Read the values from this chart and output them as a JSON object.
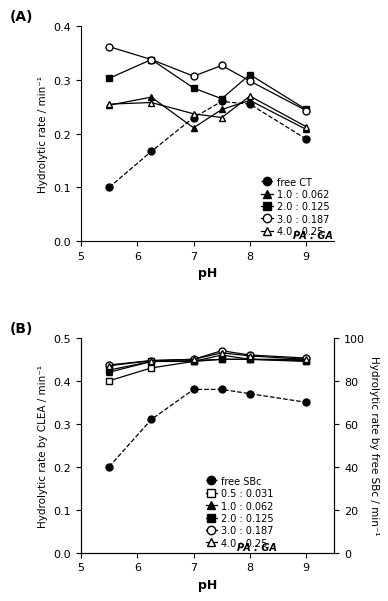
{
  "pH_values": [
    5.5,
    6.25,
    7.0,
    7.5,
    8.0,
    9.0
  ],
  "panel_A": {
    "title": "(A)",
    "ylabel": "Hydrolytic rate / min⁻¹",
    "xlabel": "pH",
    "ylim": [
      0,
      0.4
    ],
    "yticks": [
      0,
      0.1,
      0.2,
      0.3,
      0.4
    ],
    "series": [
      {
        "label": "free CT",
        "marker": "o",
        "filled": true,
        "linestyle": "--",
        "color": "black",
        "data": [
          0.1,
          0.167,
          0.23,
          0.26,
          0.255,
          0.19
        ]
      },
      {
        "label": "1.0 : 0.062",
        "marker": "^",
        "filled": true,
        "linestyle": "-",
        "color": "black",
        "data": [
          0.253,
          0.268,
          0.211,
          0.245,
          0.262,
          0.208
        ]
      },
      {
        "label": "2.0 : 0.125",
        "marker": "s",
        "filled": true,
        "linestyle": "-",
        "color": "black",
        "data": [
          0.303,
          0.338,
          0.285,
          0.265,
          0.31,
          0.245
        ]
      },
      {
        "label": "3.0 : 0.187",
        "marker": "o",
        "filled": false,
        "linestyle": "-",
        "color": "black",
        "data": [
          0.362,
          0.338,
          0.307,
          0.327,
          0.298,
          0.243
        ]
      },
      {
        "label": "4.0 : 0.25",
        "marker": "^",
        "filled": false,
        "linestyle": "-",
        "color": "black",
        "data": [
          0.255,
          0.258,
          0.237,
          0.23,
          0.27,
          0.213
        ]
      }
    ]
  },
  "panel_B": {
    "title": "(B)",
    "ylabel_left": "Hydrolytic rate by CLEA / min⁻¹",
    "ylabel_right": "Hydrolytic rate by free SBc / min⁻¹",
    "xlabel": "pH",
    "ylim_left": [
      0,
      0.5
    ],
    "yticks_left": [
      0,
      0.1,
      0.2,
      0.3,
      0.4,
      0.5
    ],
    "ylim_right": [
      0,
      100
    ],
    "yticks_right": [
      0,
      20,
      40,
      60,
      80,
      100
    ],
    "series": [
      {
        "label": "free SBc",
        "marker": "o",
        "filled": true,
        "linestyle": "--",
        "color": "black",
        "axis": "right",
        "data": [
          40,
          62,
          76,
          76,
          74,
          70
        ]
      },
      {
        "label": "0.5 : 0.031",
        "marker": "s",
        "filled": false,
        "linestyle": "-",
        "color": "black",
        "axis": "left",
        "data": [
          0.4,
          0.43,
          0.445,
          0.45,
          0.45,
          0.445
        ]
      },
      {
        "label": "1.0 : 0.062",
        "marker": "^",
        "filled": true,
        "linestyle": "-",
        "color": "black",
        "axis": "left",
        "data": [
          0.42,
          0.445,
          0.445,
          0.46,
          0.45,
          0.45
        ]
      },
      {
        "label": "2.0 : 0.125",
        "marker": "s",
        "filled": true,
        "linestyle": "-",
        "color": "black",
        "axis": "left",
        "data": [
          0.425,
          0.445,
          0.447,
          0.45,
          0.45,
          0.447
        ]
      },
      {
        "label": "3.0 : 0.187",
        "marker": "o",
        "filled": false,
        "linestyle": "-",
        "color": "black",
        "axis": "left",
        "data": [
          0.437,
          0.447,
          0.45,
          0.47,
          0.46,
          0.453
        ]
      },
      {
        "label": "4.0 : 0.25",
        "marker": "^",
        "filled": false,
        "linestyle": "-",
        "color": "black",
        "axis": "left",
        "data": [
          0.435,
          0.447,
          0.45,
          0.465,
          0.458,
          0.45
        ]
      }
    ]
  }
}
